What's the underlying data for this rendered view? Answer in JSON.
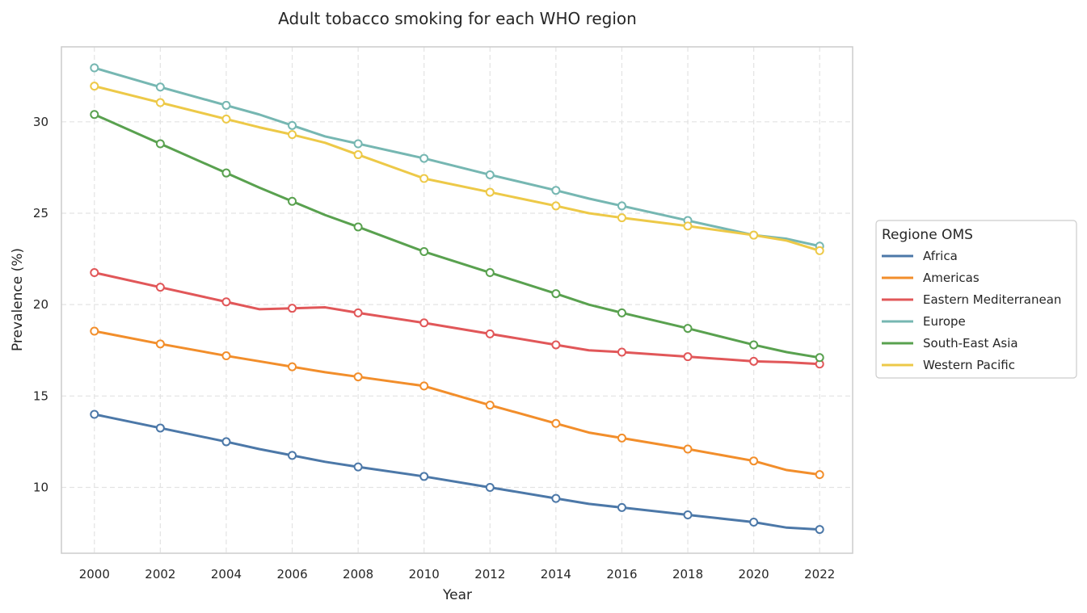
{
  "chart_data": {
    "type": "line",
    "title": "Adult tobacco smoking for each WHO region",
    "xlabel": "Year",
    "ylabel": "Prevalence (%)",
    "xlim": [
      1999,
      2023
    ],
    "ylim": [
      6.4,
      34.1
    ],
    "xticks": [
      2000,
      2002,
      2004,
      2006,
      2008,
      2010,
      2012,
      2014,
      2016,
      2018,
      2020,
      2022
    ],
    "yticks": [
      10,
      15,
      20,
      25,
      30
    ],
    "grid": true,
    "legend": {
      "title": "Regione OMS",
      "placement": "right"
    },
    "series": [
      {
        "name": "Africa",
        "color": "#4c78a8",
        "line": [
          [
            2000,
            14.0
          ],
          [
            2002,
            13.25
          ],
          [
            2004,
            12.5
          ],
          [
            2005,
            12.1
          ],
          [
            2006,
            11.75
          ],
          [
            2007,
            11.4
          ],
          [
            2008,
            11.12
          ],
          [
            2010,
            10.6
          ],
          [
            2012,
            10.0
          ],
          [
            2014,
            9.4
          ],
          [
            2015,
            9.1
          ],
          [
            2016,
            8.9
          ],
          [
            2018,
            8.5
          ],
          [
            2020,
            8.1
          ],
          [
            2021,
            7.8
          ],
          [
            2022,
            7.7
          ]
        ],
        "markers": [
          [
            2000,
            14.0
          ],
          [
            2002,
            13.25
          ],
          [
            2004,
            12.5
          ],
          [
            2006,
            11.75
          ],
          [
            2008,
            11.12
          ],
          [
            2010,
            10.6
          ],
          [
            2012,
            10.0
          ],
          [
            2014,
            9.4
          ],
          [
            2016,
            8.9
          ],
          [
            2018,
            8.5
          ],
          [
            2020,
            8.1
          ],
          [
            2022,
            7.7
          ]
        ]
      },
      {
        "name": "Americas",
        "color": "#f28e2b",
        "line": [
          [
            2000,
            18.55
          ],
          [
            2002,
            17.85
          ],
          [
            2004,
            17.2
          ],
          [
            2005,
            16.9
          ],
          [
            2006,
            16.6
          ],
          [
            2007,
            16.3
          ],
          [
            2008,
            16.05
          ],
          [
            2010,
            15.55
          ],
          [
            2012,
            14.5
          ],
          [
            2014,
            13.5
          ],
          [
            2015,
            13.0
          ],
          [
            2016,
            12.7
          ],
          [
            2018,
            12.1
          ],
          [
            2020,
            11.45
          ],
          [
            2021,
            10.95
          ],
          [
            2022,
            10.7
          ]
        ],
        "markers": [
          [
            2000,
            18.55
          ],
          [
            2002,
            17.85
          ],
          [
            2004,
            17.2
          ],
          [
            2006,
            16.6
          ],
          [
            2008,
            16.05
          ],
          [
            2010,
            15.55
          ],
          [
            2012,
            14.5
          ],
          [
            2014,
            13.5
          ],
          [
            2016,
            12.7
          ],
          [
            2018,
            12.1
          ],
          [
            2020,
            11.45
          ],
          [
            2022,
            10.7
          ]
        ]
      },
      {
        "name": "Eastern Mediterranean",
        "color": "#e15759",
        "line": [
          [
            2000,
            21.75
          ],
          [
            2002,
            20.95
          ],
          [
            2004,
            20.15
          ],
          [
            2005,
            19.75
          ],
          [
            2006,
            19.8
          ],
          [
            2007,
            19.85
          ],
          [
            2008,
            19.55
          ],
          [
            2010,
            19.0
          ],
          [
            2012,
            18.4
          ],
          [
            2014,
            17.8
          ],
          [
            2015,
            17.5
          ],
          [
            2016,
            17.4
          ],
          [
            2018,
            17.15
          ],
          [
            2020,
            16.9
          ],
          [
            2021,
            16.85
          ],
          [
            2022,
            16.75
          ]
        ],
        "markers": [
          [
            2000,
            21.75
          ],
          [
            2002,
            20.95
          ],
          [
            2004,
            20.15
          ],
          [
            2006,
            19.8
          ],
          [
            2008,
            19.55
          ],
          [
            2010,
            19.0
          ],
          [
            2012,
            18.4
          ],
          [
            2014,
            17.8
          ],
          [
            2016,
            17.4
          ],
          [
            2018,
            17.15
          ],
          [
            2020,
            16.9
          ],
          [
            2022,
            16.75
          ]
        ]
      },
      {
        "name": "Europe",
        "color": "#76b7b2",
        "line": [
          [
            2000,
            32.95
          ],
          [
            2002,
            31.9
          ],
          [
            2004,
            30.9
          ],
          [
            2005,
            30.4
          ],
          [
            2006,
            29.8
          ],
          [
            2007,
            29.2
          ],
          [
            2008,
            28.8
          ],
          [
            2010,
            28.0
          ],
          [
            2012,
            27.1
          ],
          [
            2014,
            26.25
          ],
          [
            2015,
            25.8
          ],
          [
            2016,
            25.4
          ],
          [
            2018,
            24.6
          ],
          [
            2020,
            23.8
          ],
          [
            2021,
            23.6
          ],
          [
            2022,
            23.2
          ]
        ],
        "markers": [
          [
            2000,
            32.95
          ],
          [
            2002,
            31.9
          ],
          [
            2004,
            30.9
          ],
          [
            2006,
            29.8
          ],
          [
            2008,
            28.8
          ],
          [
            2010,
            28.0
          ],
          [
            2012,
            27.1
          ],
          [
            2014,
            26.25
          ],
          [
            2016,
            25.4
          ],
          [
            2018,
            24.6
          ],
          [
            2020,
            23.8
          ],
          [
            2022,
            23.2
          ]
        ]
      },
      {
        "name": "South-East Asia",
        "color": "#59a14f",
        "line": [
          [
            2000,
            30.4
          ],
          [
            2002,
            28.8
          ],
          [
            2004,
            27.2
          ],
          [
            2005,
            26.4
          ],
          [
            2006,
            25.65
          ],
          [
            2007,
            24.9
          ],
          [
            2008,
            24.25
          ],
          [
            2010,
            22.9
          ],
          [
            2012,
            21.75
          ],
          [
            2014,
            20.6
          ],
          [
            2015,
            20.0
          ],
          [
            2016,
            19.55
          ],
          [
            2018,
            18.7
          ],
          [
            2020,
            17.8
          ],
          [
            2021,
            17.4
          ],
          [
            2022,
            17.1
          ]
        ],
        "markers": [
          [
            2000,
            30.4
          ],
          [
            2002,
            28.8
          ],
          [
            2004,
            27.2
          ],
          [
            2006,
            25.65
          ],
          [
            2008,
            24.25
          ],
          [
            2010,
            22.9
          ],
          [
            2012,
            21.75
          ],
          [
            2014,
            20.6
          ],
          [
            2016,
            19.55
          ],
          [
            2018,
            18.7
          ],
          [
            2020,
            17.8
          ],
          [
            2022,
            17.1
          ]
        ]
      },
      {
        "name": "Western Pacific",
        "color": "#edc948",
        "line": [
          [
            2000,
            31.95
          ],
          [
            2002,
            31.05
          ],
          [
            2004,
            30.15
          ],
          [
            2005,
            29.7
          ],
          [
            2006,
            29.3
          ],
          [
            2007,
            28.85
          ],
          [
            2008,
            28.2
          ],
          [
            2010,
            26.9
          ],
          [
            2012,
            26.15
          ],
          [
            2014,
            25.4
          ],
          [
            2015,
            25.0
          ],
          [
            2016,
            24.75
          ],
          [
            2018,
            24.3
          ],
          [
            2020,
            23.8
          ],
          [
            2021,
            23.5
          ],
          [
            2022,
            22.95
          ]
        ],
        "markers": [
          [
            2000,
            31.95
          ],
          [
            2002,
            31.05
          ],
          [
            2004,
            30.15
          ],
          [
            2006,
            29.3
          ],
          [
            2008,
            28.2
          ],
          [
            2010,
            26.9
          ],
          [
            2012,
            26.15
          ],
          [
            2014,
            25.4
          ],
          [
            2016,
            24.75
          ],
          [
            2018,
            24.3
          ],
          [
            2020,
            23.8
          ],
          [
            2022,
            22.95
          ]
        ]
      }
    ]
  }
}
